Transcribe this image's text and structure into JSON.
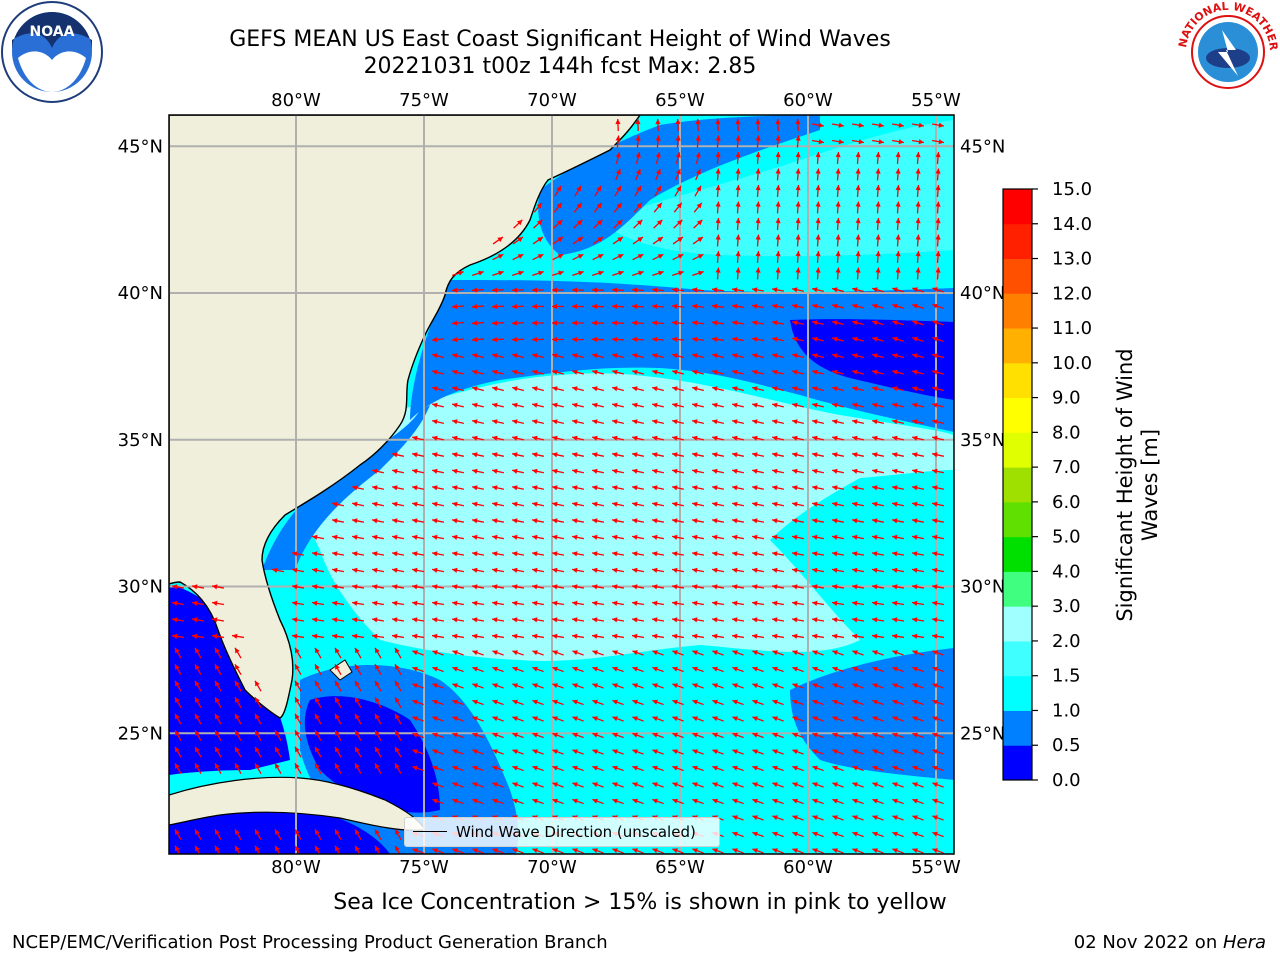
{
  "header": {
    "title_line1": "GEFS MEAN US East Coast Significant Height of Wind Waves",
    "title_line2": "20221031 t00z 144h fcst   Max: 2.85"
  },
  "logos": {
    "noaa_text": "NOAA",
    "nws_text": "NATIONAL WEATHER SERVICE"
  },
  "map": {
    "region": "US East Coast / Western North Atlantic",
    "lon_range": [
      -85,
      -54.5
    ],
    "lat_range": [
      20.5,
      46
    ],
    "lon_ticks": [
      "80°W",
      "75°W",
      "70°W",
      "65°W",
      "60°W",
      "55°W"
    ],
    "lat_ticks": [
      "45°N",
      "40°N",
      "35°N",
      "30°N",
      "25°N"
    ],
    "land_color": "#efefdb",
    "arrow_color": "#ff0000",
    "gridline_color": "#b0b0b0",
    "legend_label": "Wind Wave Direction (unscaled)"
  },
  "colorbar": {
    "label": "Significant Height of Wind Waves [m]",
    "ticks": [
      "0.0",
      "0.5",
      "1.0",
      "1.5",
      "2.0",
      "3.0",
      "4.0",
      "5.0",
      "6.0",
      "7.0",
      "8.0",
      "9.0",
      "10.0",
      "11.0",
      "12.0",
      "13.0",
      "14.0",
      "15.0"
    ],
    "colors": [
      "#0000ff",
      "#0080ff",
      "#00ffff",
      "#40ffff",
      "#a0ffff",
      "#40ff80",
      "#00e000",
      "#60e000",
      "#a0e000",
      "#e0ff00",
      "#ffff00",
      "#ffe000",
      "#ffb000",
      "#ff8000",
      "#ff5000",
      "#ff2000",
      "#ff0000"
    ]
  },
  "subtitle": "Sea Ice Concentration > 15% is shown in pink to yellow",
  "footer": {
    "left": "NCEP/EMC/Verification Post Processing Product Generation Branch",
    "right_date": "02 Nov 2022 on ",
    "right_host": "Hera"
  }
}
